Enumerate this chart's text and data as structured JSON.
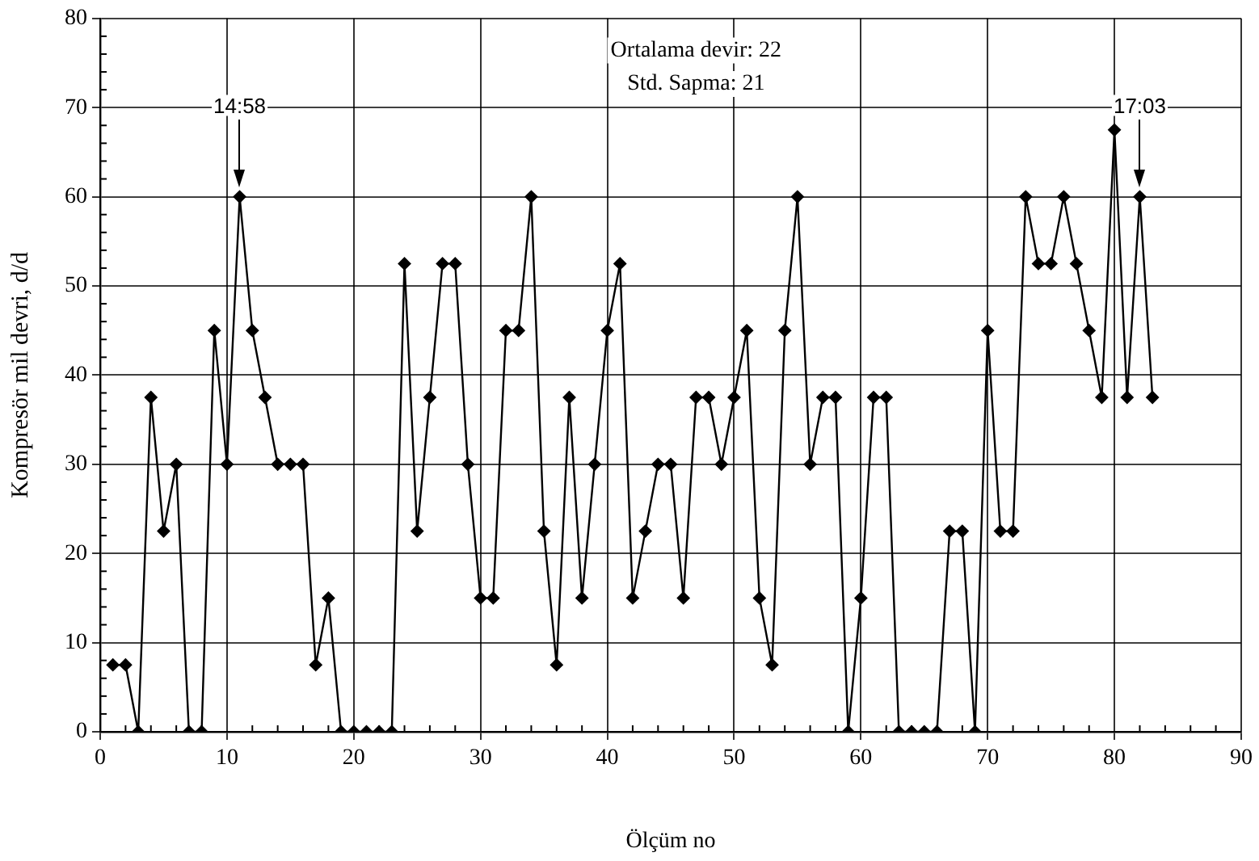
{
  "chart_data": {
    "type": "line",
    "xlabel": "Ölçüm no",
    "ylabel": "Kompresör mil devri, d/d",
    "x": [
      1,
      2,
      3,
      4,
      5,
      6,
      7,
      8,
      9,
      10,
      11,
      12,
      13,
      14,
      15,
      16,
      17,
      18,
      19,
      20,
      21,
      22,
      23,
      24,
      25,
      26,
      27,
      28,
      29,
      30,
      31,
      32,
      33,
      34,
      35,
      36,
      37,
      38,
      39,
      40,
      41,
      42,
      43,
      44,
      45,
      46,
      47,
      48,
      49,
      50,
      51,
      52,
      53,
      54,
      55,
      56,
      57,
      58,
      59,
      60,
      61,
      62,
      63,
      64,
      65,
      66,
      67,
      68,
      69,
      70,
      71,
      72,
      73,
      74,
      75,
      76,
      77,
      78,
      79,
      80,
      81,
      82,
      83
    ],
    "series": [
      {
        "color": "#000000",
        "values": [
          7.5,
          7.5,
          0,
          37.5,
          22.5,
          30,
          0,
          0,
          45,
          30,
          60,
          45,
          37.5,
          30,
          30,
          30,
          7.5,
          15,
          0,
          0,
          0,
          0,
          0,
          52.5,
          22.5,
          37.5,
          52.5,
          52.5,
          30,
          15,
          15,
          45,
          45,
          60,
          22.5,
          7.5,
          37.5,
          15,
          30,
          45,
          52.5,
          15,
          22.5,
          30,
          30,
          15,
          37.5,
          37.5,
          30,
          37.5,
          45,
          15,
          7.5,
          45,
          60,
          30,
          37.5,
          37.5,
          0,
          15,
          37.5,
          37.5,
          0,
          0,
          0,
          0,
          22.5,
          22.5,
          0,
          45,
          22.5,
          22.5,
          60,
          52.5,
          52.5,
          60,
          52.5,
          45,
          37.5,
          67.5,
          37.5,
          60,
          37.5
        ]
      }
    ],
    "xlim": [
      0,
      90
    ],
    "xticks": [
      0,
      10,
      20,
      30,
      40,
      50,
      60,
      70,
      80,
      90
    ],
    "ylim": [
      0,
      80
    ],
    "yticks": [
      0,
      10,
      20,
      30,
      40,
      50,
      60,
      70,
      80
    ],
    "grid": true,
    "legend": false,
    "marker": "diamond",
    "line_style": "solid",
    "annotations": [
      "14:58",
      "17:03",
      "Ortalama devir: 22",
      "Std. Sapma: 21"
    ]
  }
}
